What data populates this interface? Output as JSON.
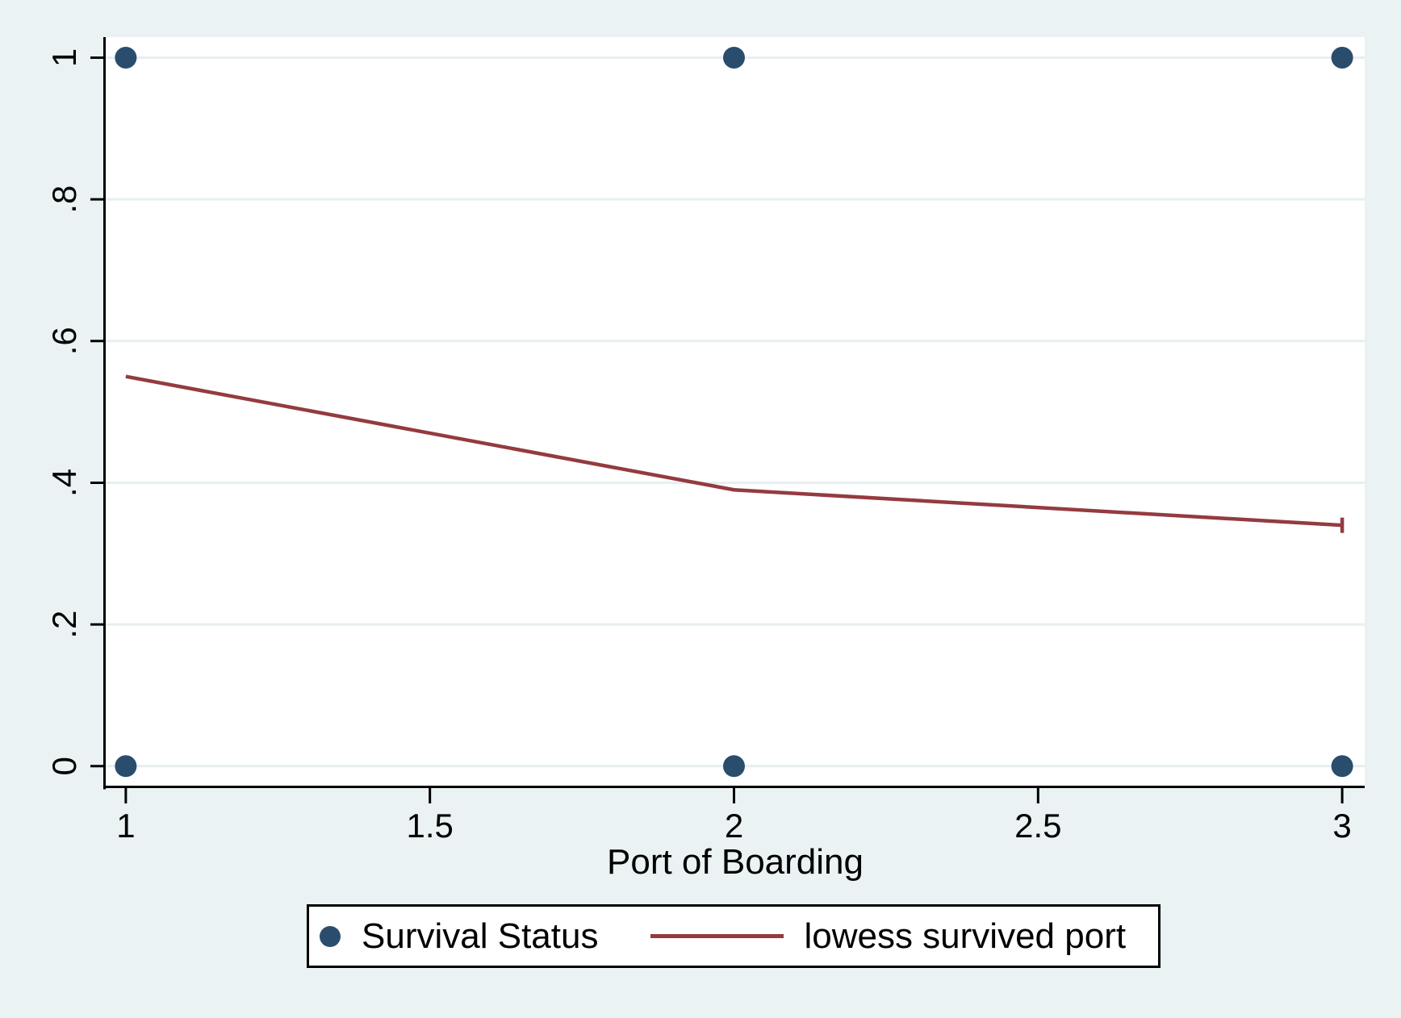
{
  "figure": {
    "background": "#eaf2f3",
    "plot_background": "#ffffff",
    "grid_color": "#e7eff1",
    "axis_color": "#000000",
    "text_color": "#000000"
  },
  "chart_data": {
    "type": "scatter",
    "title": "",
    "xlabel": "Port of Boarding",
    "ylabel": "",
    "xlim": [
      0.967,
      3.037
    ],
    "ylim": [
      -0.031,
      1.029
    ],
    "grid": "horizontal",
    "xticks": {
      "values": [
        1,
        1.5,
        2,
        2.5,
        3
      ],
      "labels": [
        "1",
        "1.5",
        "2",
        "2.5",
        "3"
      ]
    },
    "yticks": {
      "values": [
        0,
        0.2,
        0.4,
        0.6,
        0.8,
        1
      ],
      "labels": [
        "0",
        ".2",
        ".4",
        ".6",
        ".8",
        "1"
      ]
    },
    "series": [
      {
        "name": "Survival Status",
        "type": "scatter",
        "marker": "circle",
        "color": "#2a4d6e",
        "points": [
          [
            1,
            0
          ],
          [
            1,
            1
          ],
          [
            2,
            0
          ],
          [
            2,
            1
          ],
          [
            3,
            0
          ],
          [
            3,
            1
          ]
        ]
      },
      {
        "name": "lowess survived port",
        "type": "line",
        "color": "#943b40",
        "points": [
          [
            1,
            0.55
          ],
          [
            2,
            0.39
          ],
          [
            3,
            0.34
          ]
        ],
        "end_cap": true
      }
    ],
    "legend": {
      "position": "bottom",
      "entries": [
        "Survival Status",
        "lowess survived port"
      ]
    }
  }
}
